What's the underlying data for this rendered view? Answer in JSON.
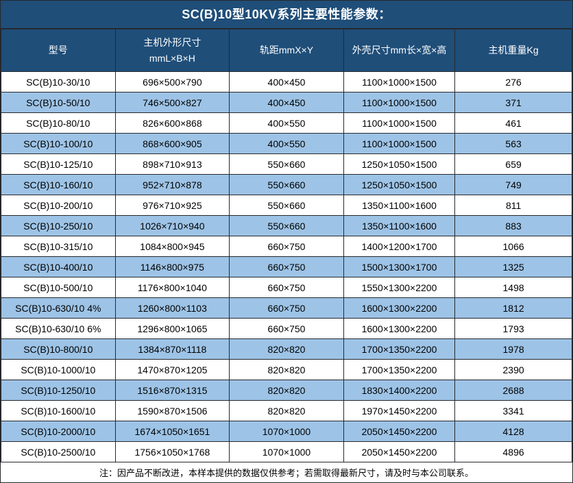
{
  "title": "SC(B)10型10KV系列主要性能参数：",
  "footer_note": "注：因产品不断改进，本样本提供的数据仅供参考；若需取得最新尺寸，请及时与本公司联系。",
  "colors": {
    "header_bg": "#1F4E79",
    "alt_row_bg": "#9DC3E6",
    "border": "#26282D",
    "header_text": "#FFFFFF",
    "body_text": "#000000"
  },
  "table": {
    "headers": [
      "型号",
      "主机外形尺寸\nmmL×B×H",
      "轨距mmX×Y",
      "外壳尺寸mm长×宽×高",
      "主机重量Kg"
    ],
    "rows": [
      [
        "SC(B)10-30/10",
        "696×500×790",
        "400×450",
        "1100×1000×1500",
        "276"
      ],
      [
        "SC(B)10-50/10",
        "746×500×827",
        "400×450",
        "1100×1000×1500",
        "371"
      ],
      [
        "SC(B)10-80/10",
        "826×600×868",
        "400×550",
        "1100×1000×1500",
        "461"
      ],
      [
        "SC(B)10-100/10",
        "868×600×905",
        "400×550",
        "1100×1000×1500",
        "563"
      ],
      [
        "SC(B)10-125/10",
        "898×710×913",
        "550×660",
        "1250×1050×1500",
        "659"
      ],
      [
        "SC(B)10-160/10",
        "952×710×878",
        "550×660",
        "1250×1050×1500",
        "749"
      ],
      [
        "SC(B)10-200/10",
        "976×710×925",
        "550×660",
        "1350×1100×1600",
        "811"
      ],
      [
        "SC(B)10-250/10",
        "1026×710×940",
        "550×660",
        "1350×1100×1600",
        "883"
      ],
      [
        "SC(B)10-315/10",
        "1084×800×945",
        "660×750",
        "1400×1200×1700",
        "1066"
      ],
      [
        "SC(B)10-400/10",
        "1146×800×975",
        "660×750",
        "1500×1300×1700",
        "1325"
      ],
      [
        "SC(B)10-500/10",
        "1176×800×1040",
        "660×750",
        "1550×1300×2200",
        "1498"
      ],
      [
        "SC(B)10-630/10 4%",
        "1260×800×1103",
        "660×750",
        "1600×1300×2200",
        "1812"
      ],
      [
        "SC(B)10-630/10 6%",
        "1296×800×1065",
        "660×750",
        "1600×1300×2200",
        "1793"
      ],
      [
        "SC(B)10-800/10",
        "1384×870×1118",
        "820×820",
        "1700×1350×2200",
        "1978"
      ],
      [
        "SC(B)10-1000/10",
        "1470×870×1205",
        "820×820",
        "1700×1350×2200",
        "2390"
      ],
      [
        "SC(B)10-1250/10",
        "1516×870×1315",
        "820×820",
        "1830×1400×2200",
        "2688"
      ],
      [
        "SC(B)10-1600/10",
        "1590×870×1506",
        "820×820",
        "1970×1450×2200",
        "3341"
      ],
      [
        "SC(B)10-2000/10",
        "1674×1050×1651",
        "1070×1000",
        "2050×1450×2200",
        "4128"
      ],
      [
        "SC(B)10-2500/10",
        "1756×1050×1768",
        "1070×1000",
        "2050×1450×2200",
        "4896"
      ]
    ]
  }
}
